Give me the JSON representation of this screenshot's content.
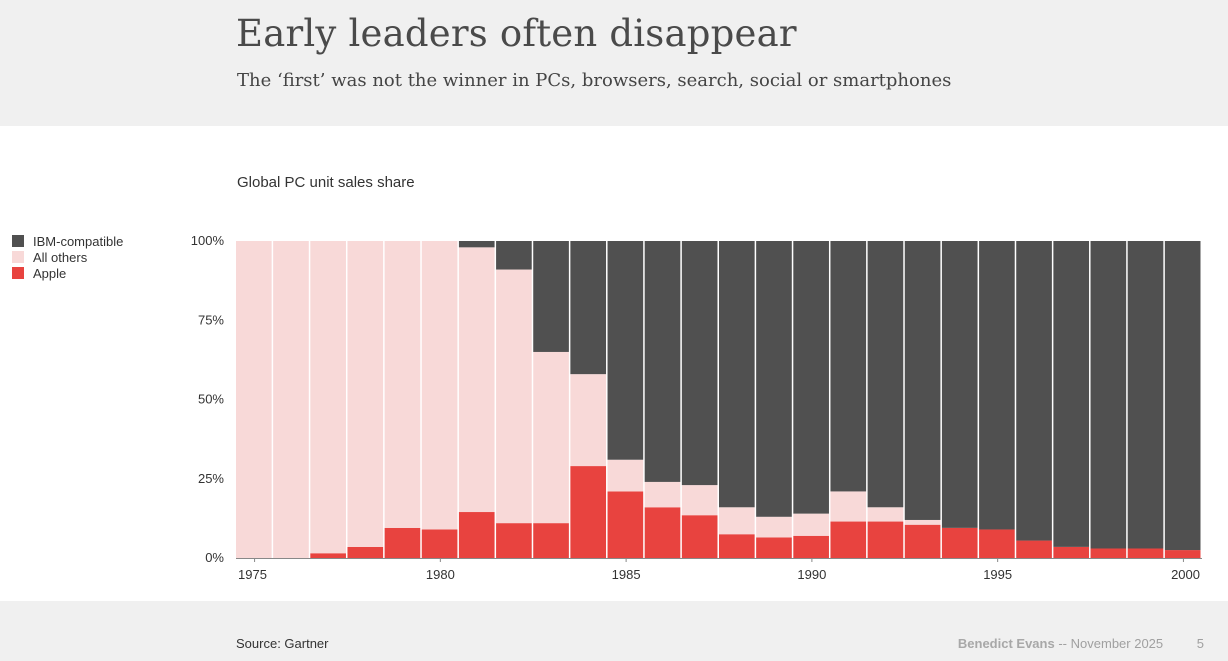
{
  "header": {
    "title": "Early leaders often disappear",
    "subtitle": "The ‘first’ was not the winner in PCs, browsers, search, social or smartphones"
  },
  "footer": {
    "source": "Source: Gartner",
    "author": "Benedict Evans",
    "separator": "--",
    "date": "November 2025",
    "page": "5"
  },
  "colors": {
    "ibm": "#505050",
    "others": "#f8d9d8",
    "apple": "#e8433f",
    "header_bg": "#f0f0f0"
  },
  "chart_data": {
    "type": "bar",
    "stacked": true,
    "normalized": true,
    "title": "Global PC unit sales share",
    "x": [
      1975,
      1976,
      1977,
      1978,
      1979,
      1980,
      1981,
      1982,
      1983,
      1984,
      1985,
      1986,
      1987,
      1988,
      1989,
      1990,
      1991,
      1992,
      1993,
      1994,
      1995,
      1996,
      1997,
      1998,
      1999,
      2000
    ],
    "x_ticks": [
      1975,
      1980,
      1985,
      1990,
      1995,
      2000
    ],
    "y_ticks": [
      "0%",
      "25%",
      "50%",
      "75%",
      "100%"
    ],
    "ylim": [
      0,
      100
    ],
    "legend_position": "left",
    "series": [
      {
        "name": "IBM-compatible",
        "color": "#505050",
        "values": [
          0,
          0,
          0,
          0,
          0,
          0,
          2,
          9,
          35,
          42,
          69,
          76,
          77,
          84,
          87,
          86,
          79,
          84,
          88,
          90.5,
          91,
          94.5,
          96.5,
          97,
          97,
          97.5
        ]
      },
      {
        "name": "All others",
        "color": "#f8d9d8",
        "values": [
          100,
          100,
          98.5,
          96.5,
          90.5,
          91,
          83.5,
          80,
          54,
          29,
          10,
          8,
          9.5,
          8.5,
          6.5,
          7,
          9.5,
          4.5,
          1.5,
          0,
          0,
          0,
          0,
          0,
          0,
          0
        ]
      },
      {
        "name": "Apple",
        "color": "#e8433f",
        "values": [
          0,
          0,
          1.5,
          3.5,
          9.5,
          9,
          14.5,
          11,
          11,
          29,
          21,
          16,
          13.5,
          7.5,
          6.5,
          7,
          11.5,
          11.5,
          10.5,
          9.5,
          9,
          5.5,
          3.5,
          3,
          3,
          2.5
        ]
      }
    ]
  }
}
